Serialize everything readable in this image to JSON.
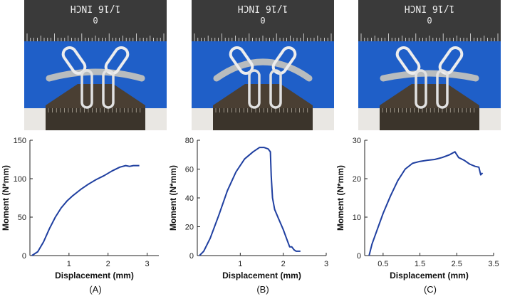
{
  "photos": [
    {
      "ruler_text": "1/16 INCH",
      "zero_label": "0"
    },
    {
      "ruler_text": "1/16 INCH",
      "zero_label": "0"
    },
    {
      "ruler_text": "1/16 INCH",
      "zero_label": "0"
    }
  ],
  "panel_labels": [
    "(A)",
    "(B)",
    "(C)"
  ],
  "colors": {
    "line": "#1f3fa0",
    "photo_bg": "#1f5fc8",
    "ruler": "#3a3a3a",
    "fixture": "#4a3f33"
  },
  "chart_data": [
    {
      "type": "line",
      "xlabel": "Displacement (mm)",
      "ylabel": "Moment (N*mm)",
      "xlim": [
        0,
        3.3
      ],
      "ylim": [
        0,
        150
      ],
      "xticks": [
        1,
        2,
        3
      ],
      "yticks": [
        0,
        50,
        100,
        150
      ],
      "grid": false,
      "series": [
        {
          "x": [
            0.05,
            0.2,
            0.35,
            0.5,
            0.65,
            0.8,
            0.95,
            1.1,
            1.3,
            1.5,
            1.7,
            1.9,
            2.1,
            2.3,
            2.45,
            2.55,
            2.65,
            2.8
          ],
          "y": [
            0,
            5,
            18,
            35,
            50,
            62,
            71,
            78,
            86,
            93,
            99,
            104,
            110,
            115,
            117,
            116,
            117,
            117
          ]
        }
      ]
    },
    {
      "type": "line",
      "xlabel": "Displacement (mm)",
      "ylabel": "Moment (N*mm)",
      "xlim": [
        0,
        3
      ],
      "ylim": [
        0,
        80
      ],
      "xticks": [
        1,
        2,
        3
      ],
      "yticks": [
        0,
        20,
        40,
        60,
        80
      ],
      "grid": false,
      "series": [
        {
          "x": [
            0.05,
            0.15,
            0.3,
            0.5,
            0.7,
            0.9,
            1.1,
            1.3,
            1.45,
            1.55,
            1.65,
            1.7,
            1.72,
            1.75,
            1.8,
            1.9,
            2.0,
            2.05,
            2.1,
            2.15,
            2.2,
            2.25,
            2.3,
            2.35,
            2.4
          ],
          "y": [
            0,
            3,
            12,
            28,
            45,
            58,
            67,
            72,
            75,
            75,
            74,
            72,
            55,
            40,
            32,
            25,
            18,
            14,
            10,
            6,
            6,
            4,
            3,
            3,
            3
          ]
        }
      ]
    },
    {
      "type": "line",
      "xlabel": "Displacement (mm)",
      "ylabel": "Moment (N*mm)",
      "xlim": [
        0,
        3.5
      ],
      "ylim": [
        0,
        30
      ],
      "xticks": [
        0.5,
        1.5,
        2.5,
        3.5
      ],
      "yticks": [
        0,
        10,
        20,
        30
      ],
      "grid": false,
      "series": [
        {
          "x": [
            0.12,
            0.2,
            0.35,
            0.5,
            0.7,
            0.9,
            1.1,
            1.3,
            1.5,
            1.7,
            1.9,
            2.1,
            2.3,
            2.45,
            2.55,
            2.7,
            2.85,
            3.0,
            3.1,
            3.15,
            3.2
          ],
          "y": [
            0,
            3,
            7,
            11,
            15.5,
            19.5,
            22.5,
            24,
            24.5,
            24.8,
            25,
            25.5,
            26.2,
            27,
            25.5,
            24.8,
            23.8,
            23.2,
            23,
            21,
            21.5
          ]
        }
      ]
    }
  ]
}
